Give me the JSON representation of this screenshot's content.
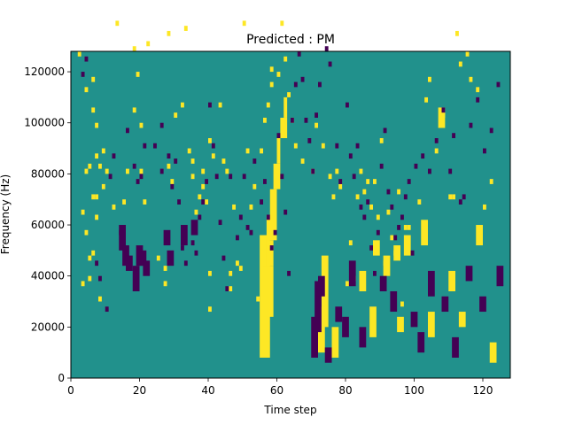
{
  "chart_data": {
    "type": "heatmap",
    "title": "Predicted : PM",
    "xlabel": "Time step",
    "ylabel": "Frequency (Hz)",
    "xlim": [
      0,
      128
    ],
    "ylim": [
      0,
      128000
    ],
    "x_ticks": [
      0,
      20,
      40,
      60,
      80,
      100,
      120
    ],
    "y_ticks": [
      0,
      20000,
      40000,
      60000,
      80000,
      100000,
      120000
    ],
    "y_tick_labels": [
      "0",
      "20000",
      "40000",
      "60000",
      "80000",
      "100000",
      "120000"
    ],
    "n_time_steps": 128,
    "n_freq_bins": 64,
    "freq_bin_width": 2000,
    "grid": false,
    "colormap": "viridis",
    "colors": {
      "low": "#440154",
      "mid": "#21918c",
      "high": "#fde725"
    },
    "background_value": 0,
    "high_cells": [
      [
        2,
        63
      ],
      [
        3,
        32
      ],
      [
        3,
        18
      ],
      [
        4,
        56
      ],
      [
        4,
        40
      ],
      [
        4,
        28
      ],
      [
        5,
        41
      ],
      [
        5,
        23
      ],
      [
        5,
        19
      ],
      [
        6,
        58
      ],
      [
        6,
        52
      ],
      [
        6,
        35
      ],
      [
        6,
        24
      ],
      [
        7,
        49
      ],
      [
        7,
        43
      ],
      [
        7,
        35
      ],
      [
        7,
        31
      ],
      [
        8,
        41
      ],
      [
        8,
        15
      ],
      [
        9,
        44
      ],
      [
        9,
        37
      ],
      [
        10,
        40
      ],
      [
        12,
        33
      ],
      [
        13,
        69
      ],
      [
        15,
        34
      ],
      [
        16,
        40
      ],
      [
        18,
        64
      ],
      [
        18,
        52
      ],
      [
        19,
        59
      ],
      [
        20,
        49
      ],
      [
        20,
        40
      ],
      [
        21,
        34
      ],
      [
        22,
        65
      ],
      [
        25,
        23
      ],
      [
        27,
        18
      ],
      [
        27,
        21
      ],
      [
        28,
        41
      ],
      [
        28,
        67
      ],
      [
        29,
        38
      ],
      [
        30,
        51
      ],
      [
        31,
        86
      ],
      [
        32,
        53
      ],
      [
        33,
        68
      ],
      [
        34,
        44
      ],
      [
        35,
        39
      ],
      [
        35,
        42
      ],
      [
        36,
        32
      ],
      [
        37,
        35
      ],
      [
        38,
        37
      ],
      [
        38,
        40
      ],
      [
        39,
        34
      ],
      [
        40,
        20
      ],
      [
        40,
        13
      ],
      [
        40,
        46
      ],
      [
        41,
        43
      ],
      [
        42,
        86
      ],
      [
        42,
        80
      ],
      [
        43,
        53
      ],
      [
        44,
        42
      ],
      [
        45,
        40
      ],
      [
        46,
        20
      ],
      [
        46,
        17
      ],
      [
        47,
        33
      ],
      [
        48,
        22
      ],
      [
        49,
        21
      ],
      [
        50,
        69
      ],
      [
        51,
        44
      ],
      [
        52,
        33
      ],
      [
        53,
        37
      ],
      [
        54,
        15
      ],
      [
        55,
        44
      ],
      [
        56,
        50
      ],
      [
        57,
        53
      ],
      [
        58,
        57
      ],
      [
        58,
        60
      ],
      [
        59,
        75
      ],
      [
        60,
        59
      ],
      [
        61,
        69
      ],
      [
        62,
        62
      ],
      [
        63,
        55
      ],
      [
        64,
        50
      ],
      [
        65,
        45
      ],
      [
        67,
        42
      ],
      [
        70,
        40
      ],
      [
        71,
        49
      ],
      [
        73,
        45
      ],
      [
        75,
        39
      ],
      [
        76,
        35
      ],
      [
        77,
        40
      ],
      [
        78,
        37
      ],
      [
        80,
        18
      ],
      [
        81,
        26
      ],
      [
        82,
        19
      ],
      [
        83,
        35
      ],
      [
        84,
        40
      ],
      [
        85,
        36
      ],
      [
        86,
        38
      ],
      [
        87,
        33
      ],
      [
        88,
        38
      ],
      [
        89,
        31
      ],
      [
        90,
        46
      ],
      [
        91,
        22
      ],
      [
        92,
        32
      ],
      [
        93,
        27
      ],
      [
        94,
        24
      ],
      [
        95,
        36
      ],
      [
        96,
        14
      ],
      [
        97,
        29
      ],
      [
        98,
        29
      ],
      [
        101,
        34
      ],
      [
        103,
        54
      ],
      [
        104,
        58
      ],
      [
        106,
        44
      ],
      [
        108,
        51
      ],
      [
        110,
        35
      ],
      [
        111,
        35
      ],
      [
        112,
        67
      ],
      [
        113,
        61
      ],
      [
        115,
        63
      ],
      [
        116,
        58
      ],
      [
        118,
        56
      ],
      [
        120,
        33
      ],
      [
        122,
        38
      ]
    ],
    "high_blocks": [
      [
        55,
        58,
        4,
        28
      ],
      [
        56,
        59,
        12,
        22
      ],
      [
        57,
        59,
        22,
        27
      ],
      [
        57,
        60,
        27,
        32
      ],
      [
        58,
        60,
        32,
        37
      ],
      [
        59,
        61,
        37,
        42
      ],
      [
        60,
        61,
        42,
        47
      ],
      [
        61,
        63,
        47,
        51
      ],
      [
        62,
        63,
        51,
        55
      ],
      [
        72,
        74,
        5,
        14
      ],
      [
        73,
        75,
        10,
        24
      ],
      [
        76,
        78,
        4,
        10
      ],
      [
        84,
        86,
        17,
        21
      ],
      [
        87,
        89,
        8,
        14
      ],
      [
        88,
        90,
        24,
        27
      ],
      [
        91,
        93,
        20,
        24
      ],
      [
        94,
        96,
        23,
        26
      ],
      [
        95,
        97,
        9,
        12
      ],
      [
        97,
        99,
        24,
        28
      ],
      [
        102,
        104,
        26,
        31
      ],
      [
        104,
        106,
        8,
        13
      ],
      [
        107,
        109,
        49,
        53
      ],
      [
        110,
        112,
        17,
        21
      ],
      [
        113,
        115,
        10,
        13
      ],
      [
        118,
        120,
        26,
        30
      ],
      [
        122,
        124,
        3,
        7
      ]
    ],
    "low_cells": [
      [
        3,
        59
      ],
      [
        4,
        62
      ],
      [
        7,
        22
      ],
      [
        8,
        19
      ],
      [
        10,
        13
      ],
      [
        11,
        39
      ],
      [
        12,
        43
      ],
      [
        14,
        28
      ],
      [
        16,
        48
      ],
      [
        18,
        41
      ],
      [
        19,
        38
      ],
      [
        20,
        39
      ],
      [
        21,
        45
      ],
      [
        24,
        45
      ],
      [
        26,
        49
      ],
      [
        26,
        40
      ],
      [
        28,
        43
      ],
      [
        29,
        37
      ],
      [
        30,
        42
      ],
      [
        31,
        34
      ],
      [
        32,
        25
      ],
      [
        33,
        22
      ],
      [
        35,
        26
      ],
      [
        36,
        24
      ],
      [
        37,
        31
      ],
      [
        38,
        34
      ],
      [
        39,
        38
      ],
      [
        40,
        53
      ],
      [
        41,
        45
      ],
      [
        42,
        39
      ],
      [
        43,
        30
      ],
      [
        44,
        23
      ],
      [
        45,
        17
      ],
      [
        46,
        39
      ],
      [
        48,
        27
      ],
      [
        49,
        31
      ],
      [
        50,
        39
      ],
      [
        51,
        29
      ],
      [
        52,
        28
      ],
      [
        53,
        42
      ],
      [
        55,
        34
      ],
      [
        56,
        38
      ],
      [
        57,
        31
      ],
      [
        58,
        25
      ],
      [
        59,
        28
      ],
      [
        60,
        47
      ],
      [
        61,
        39
      ],
      [
        62,
        32
      ],
      [
        63,
        20
      ],
      [
        64,
        50
      ],
      [
        65,
        57
      ],
      [
        66,
        63
      ],
      [
        67,
        58
      ],
      [
        68,
        50
      ],
      [
        69,
        46
      ],
      [
        70,
        40
      ],
      [
        71,
        51
      ],
      [
        72,
        57
      ],
      [
        74,
        64
      ],
      [
        75,
        61
      ],
      [
        77,
        45
      ],
      [
        78,
        38
      ],
      [
        80,
        53
      ],
      [
        81,
        43
      ],
      [
        82,
        39
      ],
      [
        83,
        45
      ],
      [
        84,
        33
      ],
      [
        85,
        31
      ],
      [
        86,
        34
      ],
      [
        87,
        25
      ],
      [
        88,
        20
      ],
      [
        89,
        28
      ],
      [
        90,
        41
      ],
      [
        91,
        48
      ],
      [
        92,
        36
      ],
      [
        93,
        33
      ],
      [
        94,
        27
      ],
      [
        95,
        29
      ],
      [
        96,
        31
      ],
      [
        97,
        35
      ],
      [
        98,
        38
      ],
      [
        99,
        24
      ],
      [
        100,
        41
      ],
      [
        102,
        43
      ],
      [
        104,
        40
      ],
      [
        106,
        46
      ],
      [
        108,
        52
      ],
      [
        110,
        40
      ],
      [
        111,
        47
      ],
      [
        113,
        34
      ],
      [
        114,
        35
      ],
      [
        116,
        49
      ],
      [
        118,
        54
      ],
      [
        120,
        44
      ],
      [
        122,
        48
      ],
      [
        124,
        57
      ]
    ],
    "low_blocks": [
      [
        14,
        16,
        25,
        30
      ],
      [
        15,
        17,
        22,
        26
      ],
      [
        16,
        18,
        21,
        24
      ],
      [
        18,
        20,
        17,
        22
      ],
      [
        19,
        21,
        22,
        26
      ],
      [
        20,
        22,
        22,
        25
      ],
      [
        21,
        23,
        20,
        23
      ],
      [
        27,
        29,
        26,
        29
      ],
      [
        28,
        30,
        22,
        25
      ],
      [
        32,
        34,
        26,
        30
      ],
      [
        35,
        37,
        28,
        31
      ],
      [
        70,
        72,
        4,
        12
      ],
      [
        71,
        73,
        9,
        19
      ],
      [
        72,
        74,
        16,
        20
      ],
      [
        74,
        76,
        3,
        6
      ],
      [
        77,
        79,
        11,
        14
      ],
      [
        79,
        81,
        8,
        12
      ],
      [
        81,
        83,
        18,
        23
      ],
      [
        84,
        86,
        6,
        10
      ],
      [
        90,
        92,
        17,
        20
      ],
      [
        93,
        95,
        13,
        17
      ],
      [
        99,
        101,
        10,
        13
      ],
      [
        101,
        103,
        5,
        9
      ],
      [
        104,
        106,
        16,
        21
      ],
      [
        108,
        110,
        13,
        16
      ],
      [
        111,
        113,
        4,
        8
      ],
      [
        115,
        117,
        19,
        22
      ],
      [
        119,
        121,
        13,
        16
      ],
      [
        124,
        126,
        18,
        22
      ]
    ]
  }
}
